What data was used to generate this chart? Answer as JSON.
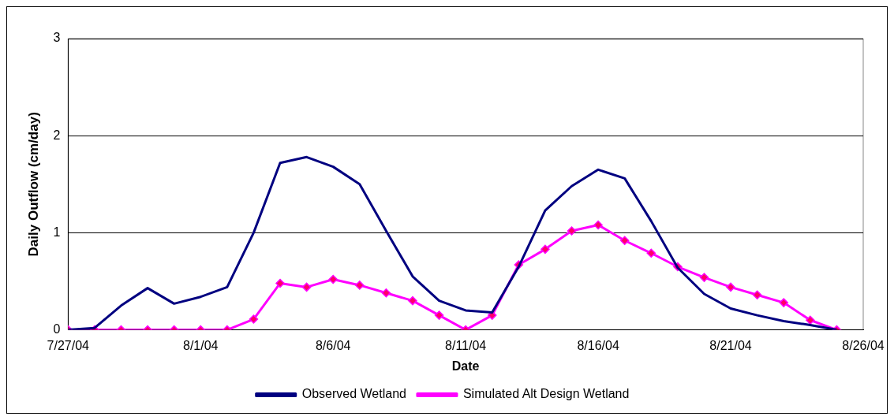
{
  "chart_data": {
    "type": "line",
    "xlabel": "Date",
    "ylabel": "Daily Outflow (cm/day)",
    "x": [
      "--07-27",
      "--07-28",
      "--07-29",
      "--07-30",
      "--07-31",
      "--08-01",
      "--08-02",
      "--08-03",
      "--08-04",
      "--08-05",
      "--08-06",
      "--08-07",
      "--08-08",
      "--08-09",
      "--08-10",
      "--08-11",
      "--08-12",
      "--08-13",
      "--08-14",
      "--08-15",
      "--08-16",
      "--08-17",
      "--08-18",
      "--08-19",
      "--08-20",
      "--08-21",
      "--08-22",
      "--08-23",
      "--08-24",
      "--08-25"
    ],
    "series": [
      {
        "name": "Observed Wetland",
        "color": "#000080",
        "marker": "none",
        "values": [
          0,
          0.02,
          0.25,
          0.43,
          0.27,
          0.34,
          0.44,
          1.0,
          1.72,
          1.78,
          1.68,
          1.5,
          1.02,
          0.55,
          0.3,
          0.2,
          0.18,
          0.65,
          1.23,
          1.48,
          1.65,
          1.56,
          1.12,
          0.64,
          0.37,
          0.22,
          0.15,
          0.09,
          0.05,
          0
        ]
      },
      {
        "name": "Simulated Alt Design Wetland",
        "color": "#ff00ff",
        "marker": "diamond",
        "values": [
          0,
          0,
          0,
          0,
          0,
          0,
          0,
          0.11,
          0.48,
          0.44,
          0.52,
          0.46,
          0.38,
          0.3,
          0.15,
          0,
          0.15,
          0.67,
          0.83,
          1.02,
          1.08,
          0.92,
          0.79,
          0.65,
          0.54,
          0.44,
          0.36,
          0.28,
          0.1,
          0
        ]
      }
    ],
    "xlim": [
      "--07-27",
      "--08-26"
    ],
    "xticks": [
      {
        "value": "--07-27",
        "label": "7/27/04"
      },
      {
        "value": "--08-01",
        "label": "8/1/04"
      },
      {
        "value": "--08-06",
        "label": "8/6/04"
      },
      {
        "value": "--08-11",
        "label": "8/11/04"
      },
      {
        "value": "--08-16",
        "label": "8/16/04"
      },
      {
        "value": "--08-21",
        "label": "8/21/04"
      },
      {
        "value": "--08-26",
        "label": "8/26/04"
      }
    ],
    "ylim": [
      0,
      3
    ],
    "yticks": [
      0,
      1,
      2,
      3
    ],
    "grid": "y",
    "legend": "bottom"
  }
}
